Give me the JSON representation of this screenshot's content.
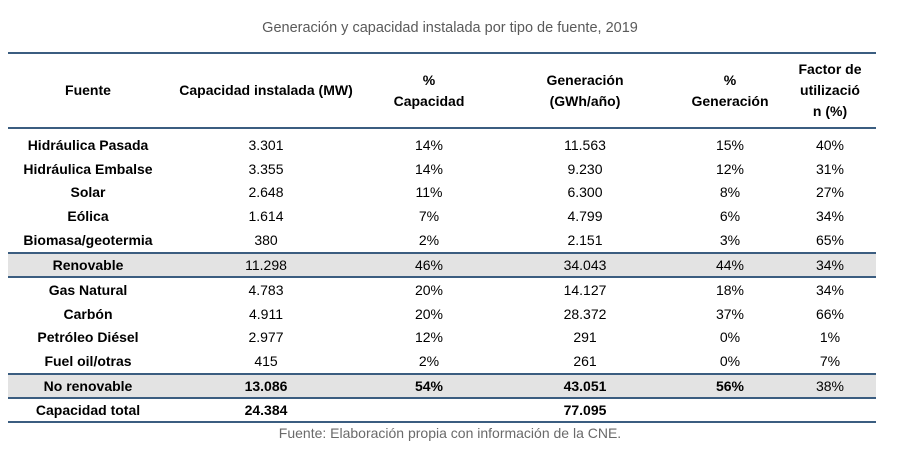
{
  "title": "Generación y capacidad instalada por tipo de fuente, 2019",
  "headers": {
    "fuente": "Fuente",
    "capacidad": "Capacidad instalada (MW)",
    "pct_capacidad_1": "%",
    "pct_capacidad_2": "Capacidad",
    "generacion_1": "Generación",
    "generacion_2": "(GWh/año)",
    "pct_generacion_1": "%",
    "pct_generacion_2": "Generación",
    "factor_1": "Factor de",
    "factor_2": "utilizació",
    "factor_3": "n (%)"
  },
  "rows": [
    {
      "fuente": "Hidráulica Pasada",
      "capacidad": "3.301",
      "pct_capacidad": "14%",
      "generacion": "11.563",
      "pct_generacion": "15%",
      "factor": "40%"
    },
    {
      "fuente": "Hidráulica Embalse",
      "capacidad": "3.355",
      "pct_capacidad": "14%",
      "generacion": "9.230",
      "pct_generacion": "12%",
      "factor": "31%"
    },
    {
      "fuente": "Solar",
      "capacidad": "2.648",
      "pct_capacidad": "11%",
      "generacion": "6.300",
      "pct_generacion": "8%",
      "factor": "27%"
    },
    {
      "fuente": "Eólica",
      "capacidad": "1.614",
      "pct_capacidad": "7%",
      "generacion": "4.799",
      "pct_generacion": "6%",
      "factor": "34%"
    },
    {
      "fuente": "Biomasa/geotermia",
      "capacidad": "380",
      "pct_capacidad": "2%",
      "generacion": "2.151",
      "pct_generacion": "3%",
      "factor": "65%"
    },
    {
      "fuente": "Renovable",
      "capacidad": "11.298",
      "pct_capacidad": "46%",
      "generacion": "34.043",
      "pct_generacion": "44%",
      "factor": "34%"
    },
    {
      "fuente": "Gas Natural",
      "capacidad": "4.783",
      "pct_capacidad": "20%",
      "generacion": "14.127",
      "pct_generacion": "18%",
      "factor": "34%"
    },
    {
      "fuente": "Carbón",
      "capacidad": "4.911",
      "pct_capacidad": "20%",
      "generacion": "28.372",
      "pct_generacion": "37%",
      "factor": "66%"
    },
    {
      "fuente": "Petróleo Diésel",
      "capacidad": "2.977",
      "pct_capacidad": "12%",
      "generacion": "291",
      "pct_generacion": "0%",
      "factor": "1%"
    },
    {
      "fuente": "Fuel oil/otras",
      "capacidad": "415",
      "pct_capacidad": "2%",
      "generacion": "261",
      "pct_generacion": "0%",
      "factor": "7%"
    },
    {
      "fuente": "No renovable",
      "capacidad": "13.086",
      "pct_capacidad": "54%",
      "generacion": "43.051",
      "pct_generacion": "56%",
      "factor": "38%"
    },
    {
      "fuente": "Capacidad total",
      "capacidad": "24.384",
      "pct_capacidad": "",
      "generacion": "77.095",
      "pct_generacion": "",
      "factor": ""
    }
  ],
  "source": "Fuente: Elaboración propia con información de la CNE."
}
